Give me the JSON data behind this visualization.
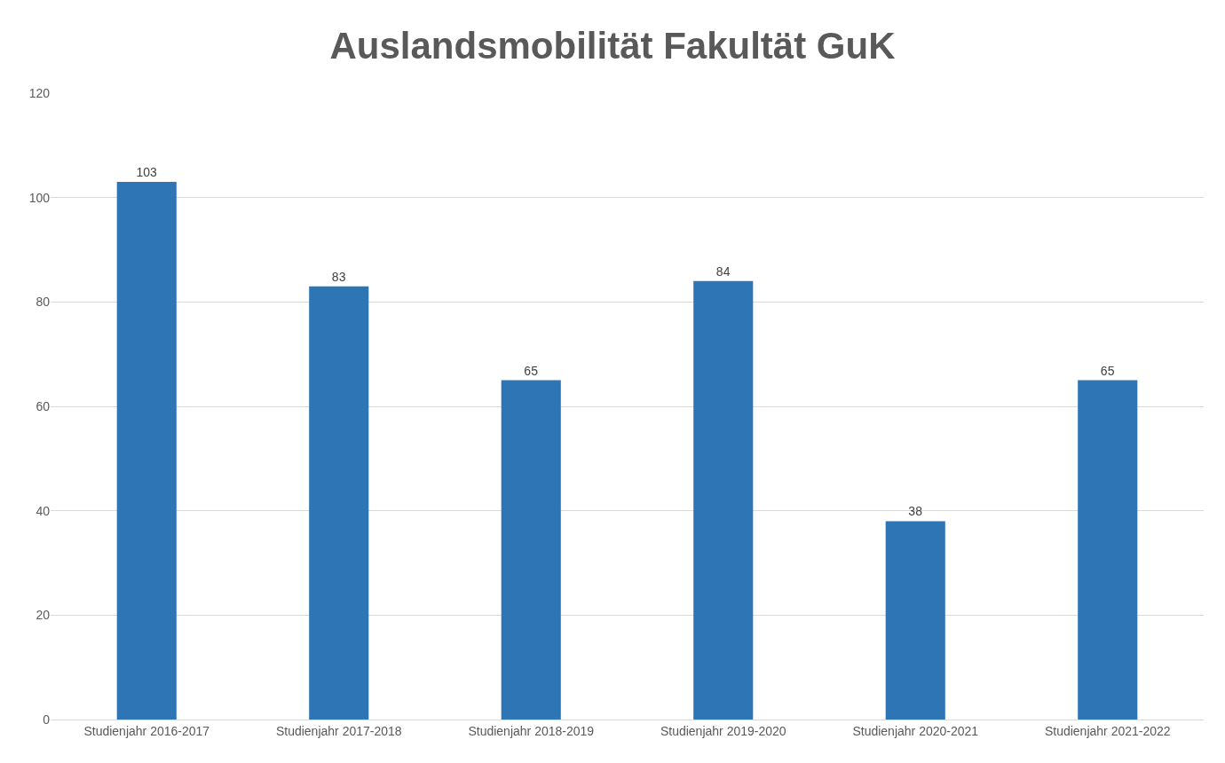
{
  "chart_data": {
    "type": "bar",
    "title": "Auslandsmobilität Fakultät GuK",
    "categories": [
      "Studienjahr 2016-2017",
      "Studienjahr 2017-2018",
      "Studienjahr 2018-2019",
      "Studienjahr 2019-2020",
      "Studienjahr 2020-2021",
      "Studienjahr 2021-2022"
    ],
    "values": [
      103,
      83,
      65,
      84,
      38,
      65
    ],
    "color": "#2e75b6",
    "ylim": [
      0,
      120
    ],
    "yticks": [
      0,
      20,
      40,
      60,
      80,
      100,
      120
    ],
    "grid": "y",
    "data_labels": true
  }
}
